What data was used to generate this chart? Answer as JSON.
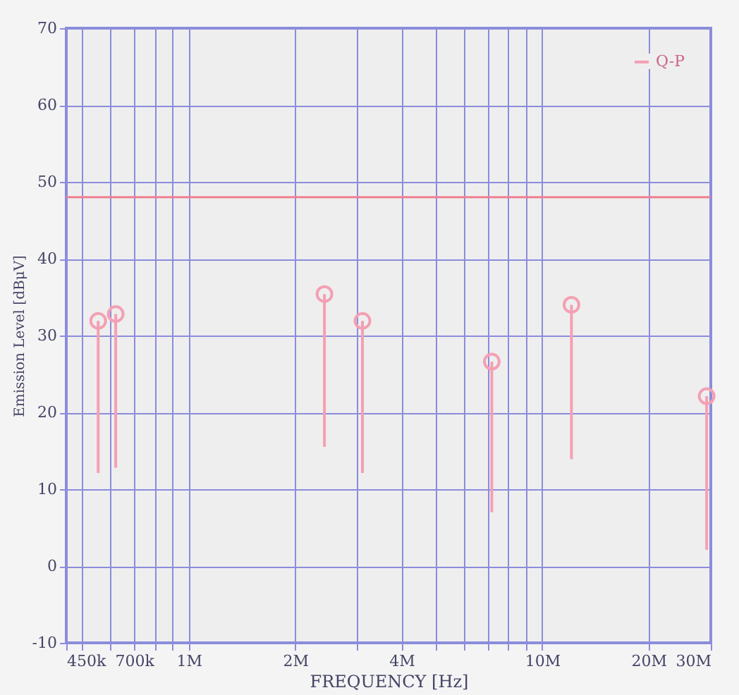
{
  "chart_data": {
    "type": "scatter",
    "xlabel": "FREQUENCY [Hz]",
    "ylabel": "Emission Level [dBμV]",
    "x": [
      554000,
      621000,
      2420000,
      3100000,
      7200000,
      12100000,
      29200000
    ],
    "series": [
      {
        "name": "Q-P",
        "color": "#f4a0b4",
        "values": [
          31.9,
          32.8,
          35.4,
          31.9,
          26.6,
          34.0,
          22.1
        ],
        "errors": [
          [
            12.1,
            31.9
          ],
          [
            12.8,
            32.8
          ],
          [
            15.5,
            35.4
          ],
          [
            12.1,
            31.9
          ],
          [
            7.0,
            26.6
          ],
          [
            13.9,
            34.0
          ],
          [
            2.1,
            22.1
          ]
        ]
      }
    ],
    "marker": "circle",
    "log": "x",
    "grid": true,
    "legend": "top right",
    "xlim": [
      450000,
      30000000
    ],
    "xticks": [
      {
        "value": 450000,
        "label": "450k"
      },
      {
        "value": 500000,
        "label": null
      },
      {
        "value": 600000,
        "label": null
      },
      {
        "value": 700000,
        "label": "700k"
      },
      {
        "value": 800000,
        "label": null
      },
      {
        "value": 900000,
        "label": null
      },
      {
        "value": 1000000,
        "label": "1M"
      },
      {
        "value": 2000000,
        "label": "2M"
      },
      {
        "value": 3000000,
        "label": null
      },
      {
        "value": 4000000,
        "label": "4M"
      },
      {
        "value": 5000000,
        "label": null
      },
      {
        "value": 6000000,
        "label": null
      },
      {
        "value": 7000000,
        "label": null
      },
      {
        "value": 8000000,
        "label": null
      },
      {
        "value": 9000000,
        "label": null
      },
      {
        "value": 10000000,
        "label": "10M"
      },
      {
        "value": 20000000,
        "label": "20M"
      },
      {
        "value": 30000000,
        "label": "30M"
      }
    ],
    "ylim": [
      -10,
      70
    ],
    "yticks": [
      -10,
      0,
      10,
      20,
      30,
      40,
      50,
      60,
      70
    ],
    "ref_lines": [
      {
        "axis": "y",
        "value": 48,
        "color": "#f08090"
      }
    ]
  }
}
